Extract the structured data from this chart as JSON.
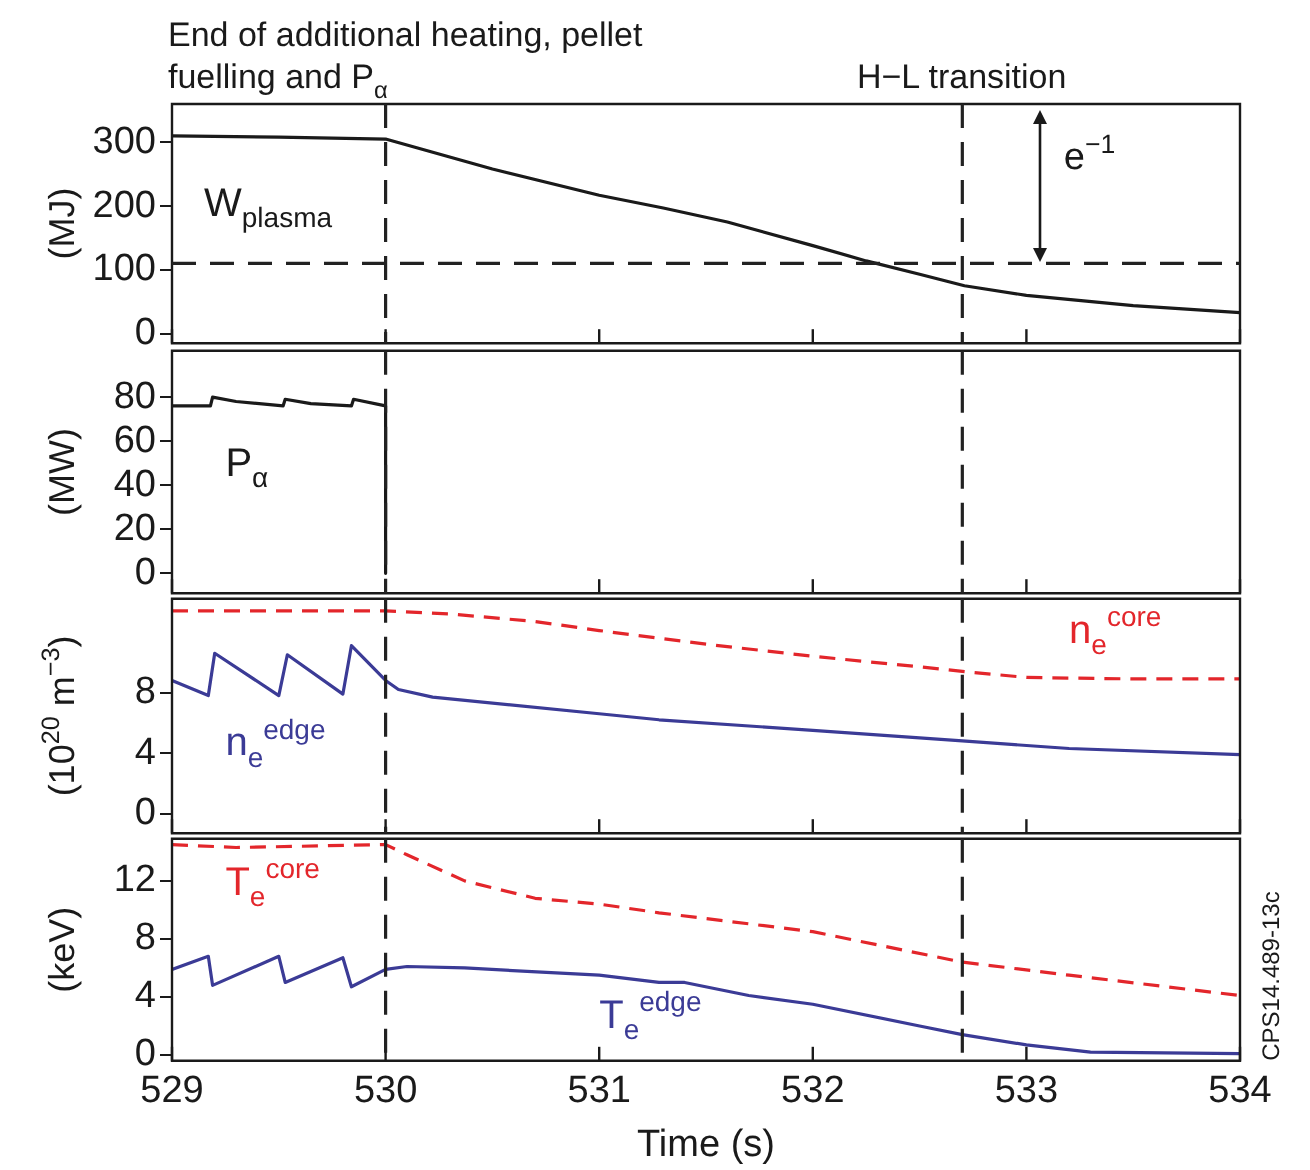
{
  "chart_data": [
    {
      "type": "line",
      "ylabel": "(MJ)",
      "xlim": [
        529,
        534
      ],
      "xticks": [
        529,
        530,
        531,
        532,
        533,
        534
      ],
      "ylim": [
        -15,
        360
      ],
      "yticks": [
        0,
        100,
        200,
        300
      ],
      "tick_labels": "y",
      "series": [
        {
          "name": "W$_{plasma}$",
          "color": "#1a1a1a",
          "x": [
            529,
            529.5,
            530,
            530.5,
            531,
            531.3,
            531.6,
            532,
            532.25,
            532.5,
            532.71,
            533,
            533.5,
            534
          ],
          "values": [
            310,
            308,
            305,
            258,
            217,
            197,
            175,
            138,
            114,
            93,
            75,
            60,
            44,
            33
          ]
        }
      ],
      "ref_lines": [
        {
          "axis": "x",
          "value": 530,
          "label": "End of additional heating, pellet fuelling and P$_{α}$"
        },
        {
          "axis": "x",
          "value": 532.7,
          "label": "H−L transition"
        },
        {
          "axis": "y",
          "value": 110
        }
      ],
      "annotations": [
        "e$^{−1}$"
      ]
    },
    {
      "type": "line",
      "ylabel": "(MW)",
      "xlim": [
        529,
        534
      ],
      "xticks": [
        529,
        530,
        531,
        532,
        533,
        534
      ],
      "ylim": [
        -9,
        101
      ],
      "yticks": [
        0,
        20,
        40,
        60,
        80
      ],
      "tick_labels": "y",
      "series": [
        {
          "name": "P$_{α}$",
          "color": "#1a1a1a",
          "x": [
            529,
            529.18,
            529.19,
            529.3,
            529.52,
            529.53,
            529.65,
            529.84,
            529.85,
            530,
            530
          ],
          "values": [
            76,
            76,
            80,
            78,
            76,
            79,
            77,
            76,
            79,
            76,
            0
          ]
        }
      ],
      "ref_lines": [
        {
          "axis": "x",
          "value": 530
        },
        {
          "axis": "x",
          "value": 532.7
        }
      ]
    },
    {
      "type": "line",
      "ylabel": "(10$^{20}$ m$^{−3}$)",
      "xlim": [
        529,
        534
      ],
      "xticks": [
        529,
        530,
        531,
        532,
        533,
        534
      ],
      "ylim": [
        -1.3,
        14.2
      ],
      "yticks": [
        0,
        4,
        8
      ],
      "tick_labels": "y",
      "series": [
        {
          "name": "n$_{e}$$^{core}$",
          "color": "#e3262b",
          "line_style": "dashed",
          "x": [
            529,
            530,
            530.3,
            530.7,
            531,
            531.5,
            532,
            532.5,
            532.7,
            533,
            533.5,
            534
          ],
          "values": [
            13.4,
            13.4,
            13.2,
            12.7,
            12.1,
            11.2,
            10.4,
            9.7,
            9.4,
            9.0,
            8.9,
            8.9
          ]
        },
        {
          "name": "n$_{e}$$^{edge}$",
          "color": "#3b3b96",
          "line_style": "solid",
          "x": [
            529,
            529.17,
            529.2,
            529.5,
            529.54,
            529.8,
            529.84,
            530,
            530.06,
            530.22,
            531,
            531.28,
            532,
            532.7,
            533.2,
            534
          ],
          "values": [
            8.8,
            7.8,
            10.6,
            7.8,
            10.5,
            7.9,
            11.1,
            8.8,
            8.2,
            7.7,
            6.6,
            6.2,
            5.5,
            4.8,
            4.3,
            3.9
          ]
        }
      ],
      "ref_lines": [
        {
          "axis": "x",
          "value": 530
        },
        {
          "axis": "x",
          "value": 532.7
        }
      ]
    },
    {
      "type": "line",
      "ylabel": "(keV)",
      "xlabel": "Time (s)",
      "xlim": [
        529,
        534
      ],
      "xticks": [
        529,
        530,
        531,
        532,
        533,
        534
      ],
      "ylim": [
        -0.4,
        14.9
      ],
      "yticks": [
        0,
        4,
        8,
        12
      ],
      "series": [
        {
          "name": "T$_{e}$$^{core}$",
          "color": "#e3262b",
          "line_style": "dashed",
          "x": [
            529,
            529.3,
            530,
            530.1,
            530.37,
            530.7,
            531,
            531.28,
            532,
            532.7,
            533.2,
            534
          ],
          "values": [
            14.5,
            14.3,
            14.5,
            13.8,
            12.0,
            10.8,
            10.4,
            9.8,
            8.5,
            6.4,
            5.5,
            4.1
          ]
        },
        {
          "name": "T$_{e}$$^{edge}$",
          "color": "#3b3b96",
          "line_style": "solid",
          "x": [
            529,
            529.17,
            529.19,
            529.5,
            529.53,
            529.8,
            529.84,
            530,
            530.1,
            530.37,
            531,
            531.28,
            531.4,
            531.7,
            532,
            532.5,
            532.7,
            533,
            533.3,
            534
          ],
          "values": [
            5.9,
            6.8,
            4.8,
            6.8,
            5.0,
            6.7,
            4.7,
            5.9,
            6.1,
            6.0,
            5.5,
            5.0,
            5.0,
            4.1,
            3.5,
            2.0,
            1.4,
            0.7,
            0.2,
            0.1
          ]
        }
      ],
      "ref_lines": [
        {
          "axis": "x",
          "value": 530
        },
        {
          "axis": "x",
          "value": 532.7
        }
      ],
      "annotations": [
        "CPS14.489-13c"
      ]
    }
  ]
}
